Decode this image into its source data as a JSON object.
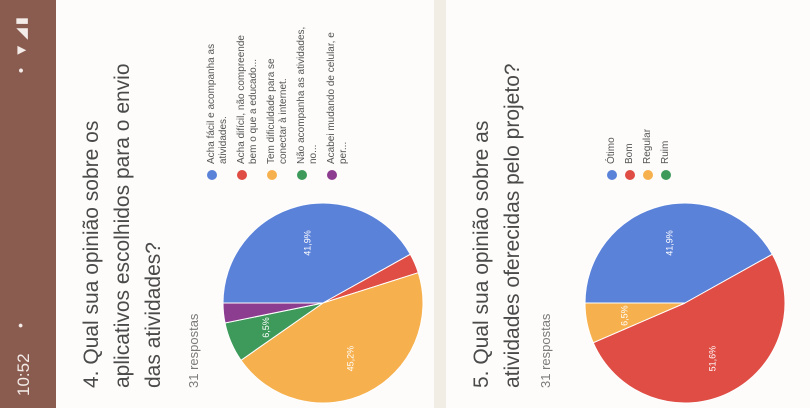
{
  "status_bar": {
    "time": "10:52",
    "dot": "•",
    "icons": "• ▼◢▮"
  },
  "questions": [
    {
      "title": "4. Qual sua opinião sobre os aplicativos escolhidos para o envio das atividades?",
      "responses": "31 respostas",
      "chart_data": {
        "type": "pie",
        "title": "",
        "slices": [
          {
            "label": "Acha fácil e acompanha as atividades.",
            "value": 41.9,
            "color": "#5b82d9",
            "text": "41,9%"
          },
          {
            "label": "Acha difícil, não compreende bem o que a educado...",
            "value": 3.2,
            "color": "#df4d45",
            "text": ""
          },
          {
            "label": "Tem dificuldade para se conectar à internet.",
            "value": 45.2,
            "color": "#f6b04e",
            "text": "45,2%"
          },
          {
            "label": "Não acompanha as atividades, no...",
            "value": 6.5,
            "color": "#3e9a5a",
            "text": "6,5%"
          },
          {
            "label": "Acabei mudando de celular, e per...",
            "value": 3.2,
            "color": "#8d3d8f",
            "text": ""
          }
        ]
      }
    },
    {
      "title": "5. Qual sua opinião sobre as atividades oferecidas pelo projeto?",
      "responses": "31 respostas",
      "chart_data": {
        "type": "pie",
        "title": "",
        "slices": [
          {
            "label": "Ótimo",
            "value": 41.9,
            "color": "#5b82d9",
            "text": "41,9%"
          },
          {
            "label": "Bom",
            "value": 51.6,
            "color": "#df4d45",
            "text": "51,6%"
          },
          {
            "label": "Regular",
            "value": 6.5,
            "color": "#f6b04e",
            "text": "6,5%"
          },
          {
            "label": "Ruim",
            "value": 0,
            "color": "#3e9a5a",
            "text": ""
          }
        ]
      }
    }
  ]
}
